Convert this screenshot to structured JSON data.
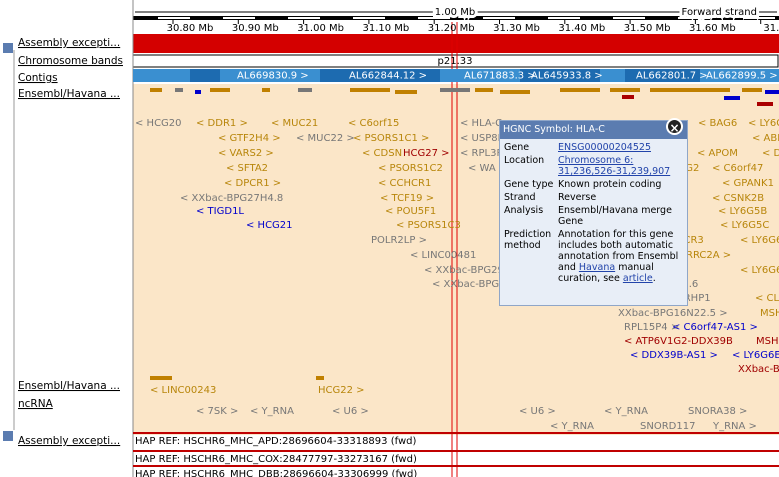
{
  "ruler": {
    "span": "1.00 Mb",
    "strand": "Forward strand",
    "ticks": [
      "30.80 Mb",
      "30.90 Mb",
      "31.00 Mb",
      "31.10 Mb",
      "31.20 Mb",
      "31.30 Mb",
      "31.40 Mb",
      "31.50 Mb",
      "31.60 Mb",
      "31.70"
    ]
  },
  "tracks": [
    "Assembly excepti...",
    "Chromosome bands",
    "Contigs",
    "Ensembl/Havana ...",
    "Ensembl/Havana ...",
    "ncRNA",
    "Assembly excepti..."
  ],
  "band": "p21.33",
  "contigs": [
    "AL669830.9 >",
    "AL662844.12 >",
    "AL671883.3 >",
    "AL645933.8 >",
    "AL662801.7 >",
    "AL662899.5 >"
  ],
  "features": [
    "< HCG20",
    "< DDR1 >",
    "< MUC21",
    "< C6orf15",
    "< HLA-C",
    "< BAG6",
    "< LY6G",
    "< GTF2H4 >",
    "< MUC22 >",
    "< PSORS1C1 >",
    "< USP8P1",
    "< ABHD1",
    "< VARS2 >",
    "< CDSN",
    "HCG27 >",
    "< RPL3P",
    "< APOM",
    "< DD",
    "< SFTA2",
    "< PSORS1C2",
    "< WA",
    "V1G2",
    "< C6orf47",
    "< DPCR1 >",
    "< CCHCR1",
    "< GPANK1",
    "< XXbac-BPG27H4.8",
    "< TCF19 >",
    "< CSNK2B",
    "< TIGD1L",
    "< POU5F1",
    "< LY6G5B",
    "< HCG21",
    "< PSORS1C3",
    "< LY6G5C",
    "POLR2LP >",
    "NCR3",
    "< LY6G6F",
    "< LINC00481",
    "PRRC2A >",
    "< XXbac-BPG29",
    "< LY6G6",
    "< XXbac-BPG",
    "23.6",
    "< UQCRHP1",
    "< CLI",
    "XXbac-BPG16N22.5 >",
    "MSH",
    "RPL15P4 >",
    "< C6orf47-AS1 >",
    "< ATP6V1G2-DDX39B",
    "MSH",
    "< DDX39B-AS1 >",
    "< LY6G6E",
    "XXbac-BPG",
    "< LINC00243",
    "HCG22 >",
    "< 7SK >",
    "< Y_RNA",
    "< U6 >",
    "< U6 >",
    "< Y_RNA",
    "SNORA38 >",
    "< Y_RNA",
    "SNORD117",
    "Y_RNA >"
  ],
  "haplotypes": [
    "HAP REF: HSCHR6_MHC_APD:28696604-33318893 (fwd)",
    "HAP REF: HSCHR6_MHC_COX:28477797-33273167 (fwd)",
    "HAP REF: HSCHR6_MHC_DBB:28696604-33306999 (fwd)"
  ],
  "popup": {
    "title": "HGNC Symbol: HLA-C",
    "rows": [
      {
        "key": "Gene",
        "value": "ENSG00000204525"
      },
      {
        "key": "Location",
        "value": "Chromosome 6: 31,236,526-31,239,907"
      },
      {
        "key": "Gene type",
        "value": "Known protein coding"
      },
      {
        "key": "Strand",
        "value": "Reverse"
      },
      {
        "key": "Analysis",
        "value": "Ensembl/Havana merge Gene"
      }
    ],
    "prediction": {
      "key": "Prediction method",
      "text1": "Annotation for this gene includes both automatic annotation from Ensembl and",
      "link1": "Havana",
      "text2": "manual curation, see",
      "link2": "article",
      "end": "."
    }
  }
}
